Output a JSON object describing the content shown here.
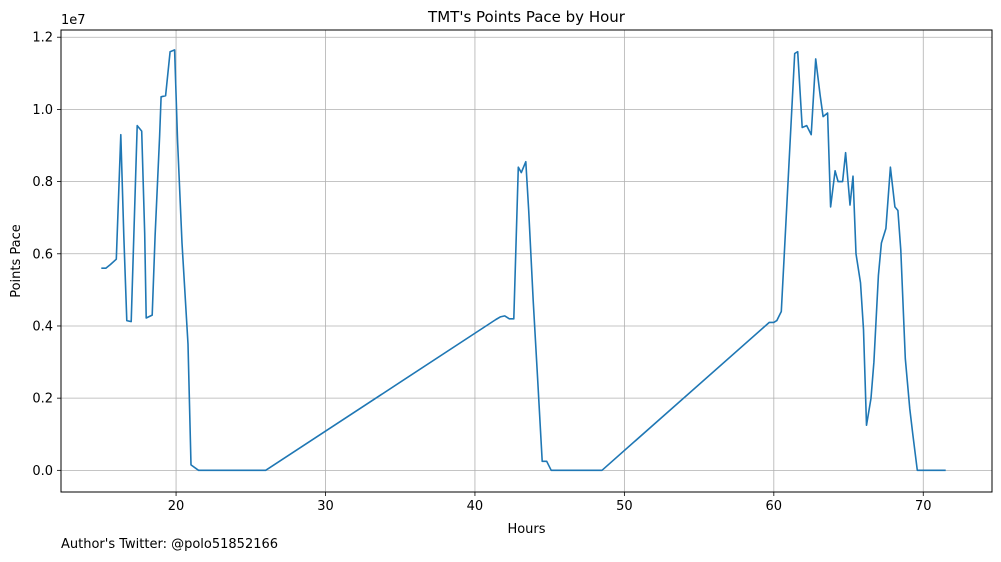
{
  "chart_data": {
    "type": "line",
    "title": "TMT's Points Pace by Hour",
    "xlabel": "Hours",
    "ylabel": "Points Pace",
    "y_offset_label": "1e7",
    "xlim": [
      12.3,
      74.6
    ],
    "ylim": [
      -600000,
      12200000
    ],
    "x_ticks": [
      20,
      30,
      40,
      50,
      60,
      70
    ],
    "x_tick_labels": [
      "20",
      "30",
      "40",
      "50",
      "60",
      "70"
    ],
    "y_ticks": [
      0,
      2000000,
      4000000,
      6000000,
      8000000,
      10000000,
      12000000
    ],
    "y_tick_labels": [
      "0.0",
      "0.2",
      "0.4",
      "0.6",
      "0.8",
      "1.0",
      "1.2"
    ],
    "grid": true,
    "line_color": "#1f77b4",
    "series": [
      {
        "x": [
          15.0,
          15.3,
          15.6,
          16.0,
          16.3,
          16.5,
          16.7,
          17.0,
          17.3,
          17.4,
          17.7,
          17.9,
          18.0,
          18.4,
          18.6,
          18.9,
          19.0,
          19.3,
          19.6,
          19.9,
          20.1,
          20.4,
          20.8,
          21.0,
          21.5,
          22.5,
          26.0,
          41.4,
          41.7,
          42.0,
          42.3,
          42.6,
          42.9,
          43.1,
          43.4,
          43.6,
          43.9,
          44.2,
          44.5,
          44.8,
          45.1,
          45.4,
          47.0,
          48.5,
          59.7,
          60.0,
          60.2,
          60.5,
          60.8,
          61.1,
          61.4,
          61.6,
          61.9,
          62.2,
          62.5,
          62.8,
          63.1,
          63.3,
          63.6,
          63.8,
          64.1,
          64.3,
          64.6,
          64.8,
          65.1,
          65.3,
          65.5,
          65.8,
          66.0,
          66.2,
          66.5,
          66.7,
          67.0,
          67.2,
          67.5,
          67.8,
          68.1,
          68.3,
          68.5,
          68.8,
          69.1,
          69.3,
          69.6,
          70.3,
          71.5
        ],
        "y": [
          5600000,
          5600000,
          5700000,
          5850000,
          9300000,
          6500000,
          4150000,
          4120000,
          8200000,
          9550000,
          9400000,
          6550000,
          4220000,
          4300000,
          6500000,
          9250000,
          10350000,
          10380000,
          11600000,
          11650000,
          9100000,
          6300000,
          3500000,
          150000,
          0,
          0,
          0,
          4180000,
          4250000,
          4280000,
          4200000,
          4200000,
          8400000,
          8250000,
          8550000,
          7200000,
          4700000,
          2500000,
          250000,
          250000,
          0,
          0,
          0,
          0,
          4100000,
          4100000,
          4150000,
          4400000,
          6800000,
          9200000,
          11550000,
          11600000,
          9500000,
          9550000,
          9300000,
          11400000,
          10400000,
          9800000,
          9900000,
          7300000,
          8300000,
          8000000,
          8000000,
          8800000,
          7350000,
          8150000,
          6000000,
          5200000,
          3900000,
          1250000,
          2000000,
          3000000,
          5400000,
          6300000,
          6700000,
          8400000,
          7300000,
          7200000,
          6100000,
          3100000,
          1700000,
          1000000,
          0,
          0,
          0
        ]
      }
    ]
  },
  "footnote": "Author's Twitter: @polo51852166"
}
